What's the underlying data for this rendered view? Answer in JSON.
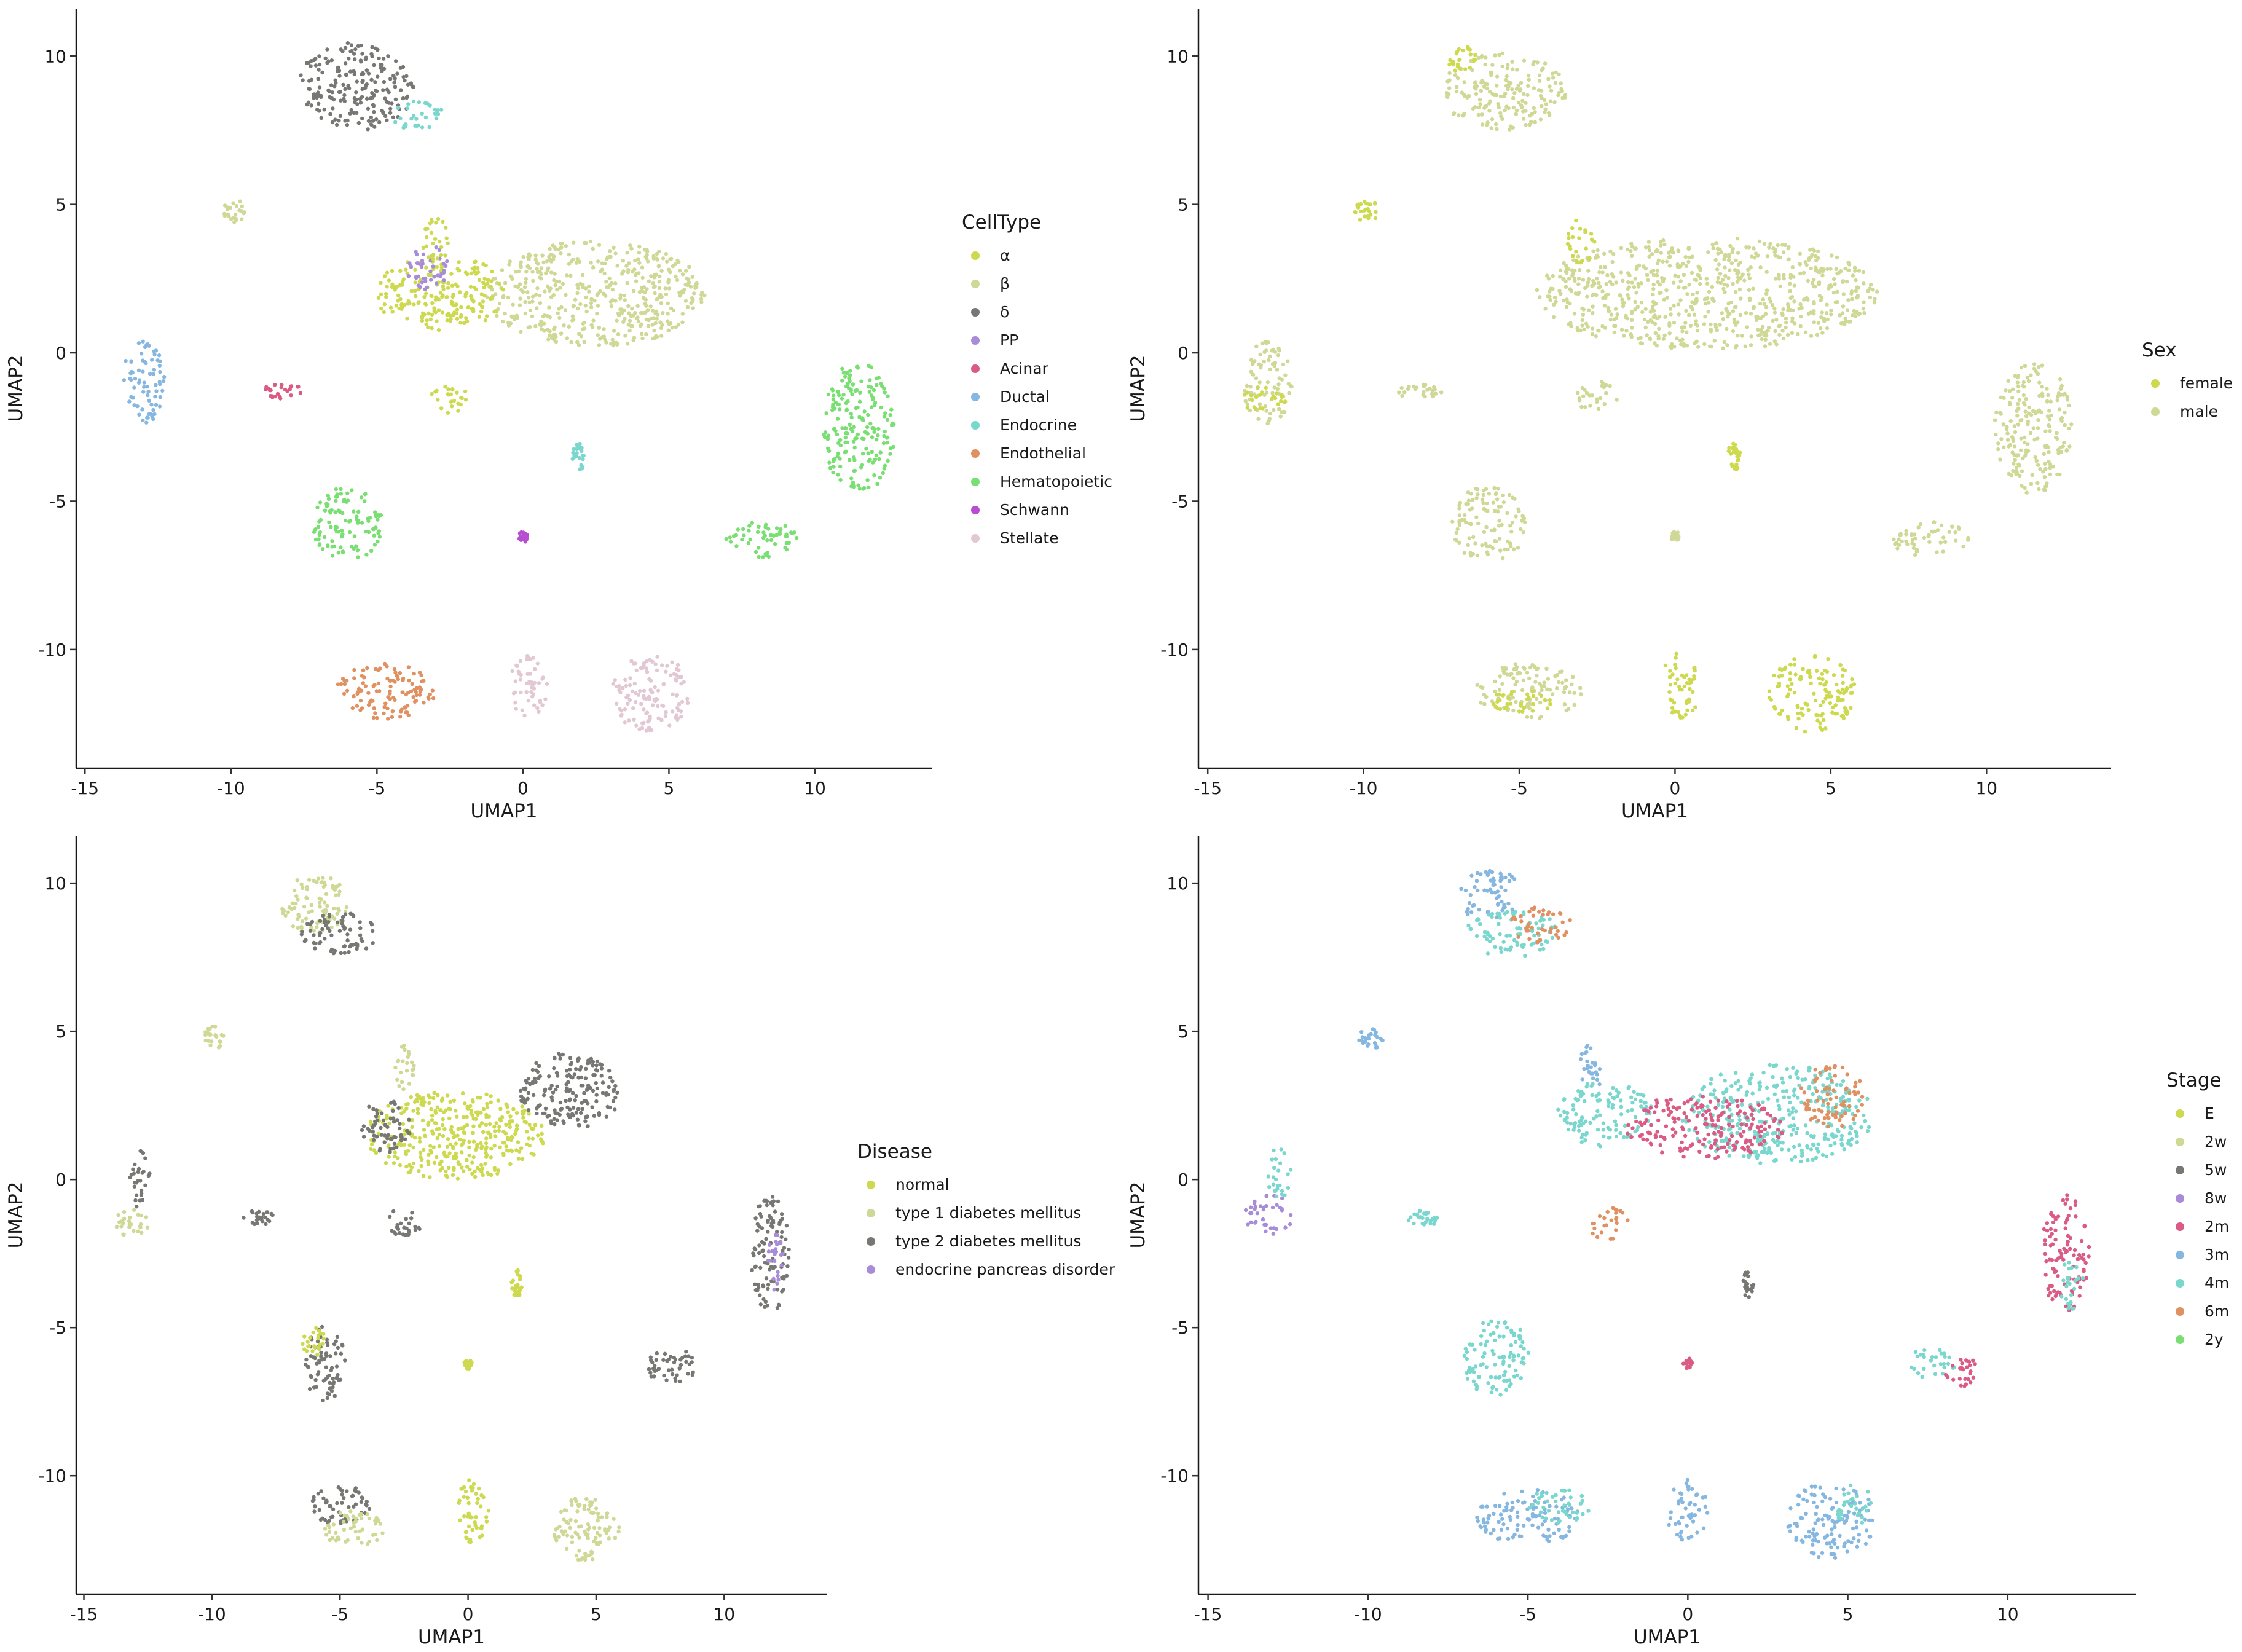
{
  "chart_data": [
    {
      "type": "scatter",
      "xlabel": "UMAP1",
      "ylabel": "UMAP2",
      "xlim": [
        -15.3,
        14
      ],
      "ylim": [
        -14.0,
        11.6
      ],
      "xticks": [
        -15,
        -10,
        -5,
        0,
        5,
        10
      ],
      "yticks": [
        10,
        5,
        0,
        -5,
        -10
      ],
      "legend": {
        "title": "CellType",
        "placement": "right",
        "entries": [
          {
            "label": "α",
            "color": "#CDD94E"
          },
          {
            "label": "β",
            "color": "#CFD895"
          },
          {
            "label": "δ",
            "color": "#777773"
          },
          {
            "label": "PP",
            "color": "#A98CD8"
          },
          {
            "label": "Acinar",
            "color": "#DA5C84"
          },
          {
            "label": "Ductal",
            "color": "#86B7E0"
          },
          {
            "label": "Endocrine",
            "color": "#7AD7CE"
          },
          {
            "label": "Endothelial",
            "color": "#DF9162"
          },
          {
            "label": "Hematopoietic",
            "color": "#7ADF72"
          },
          {
            "label": "Schwann",
            "color": "#B74DD0"
          },
          {
            "label": "Stellate",
            "color": "#E2C8D3"
          }
        ]
      },
      "clusters": [
        {
          "x": -5.7,
          "y": 9.0,
          "w": 4.0,
          "h": 3.0,
          "color": "#777773"
        },
        {
          "x": -3.6,
          "y": 8.0,
          "w": 1.8,
          "h": 1.0,
          "color": "#7AD7CE"
        },
        {
          "x": -9.9,
          "y": 4.8,
          "w": 0.8,
          "h": 0.8,
          "color": "#CFD895"
        },
        {
          "x": 2.5,
          "y": 2.0,
          "w": 7.5,
          "h": 3.6,
          "color": "#CFD895"
        },
        {
          "x": -2.8,
          "y": 2.0,
          "w": 4.5,
          "h": 2.6,
          "color": "#CDD94E"
        },
        {
          "x": -3.2,
          "y": 2.8,
          "w": 1.5,
          "h": 1.6,
          "color": "#A98CD8"
        },
        {
          "x": -3.0,
          "y": 3.8,
          "w": 0.9,
          "h": 1.6,
          "color": "#CDD94E"
        },
        {
          "x": -13.0,
          "y": -1.0,
          "w": 1.5,
          "h": 2.8,
          "color": "#86B7E0"
        },
        {
          "x": -8.2,
          "y": -1.3,
          "w": 1.5,
          "h": 0.5,
          "color": "#DA5C84"
        },
        {
          "x": -2.5,
          "y": -1.5,
          "w": 1.3,
          "h": 1.1,
          "color": "#CDD94E"
        },
        {
          "x": 1.9,
          "y": -3.5,
          "w": 0.4,
          "h": 1.0,
          "color": "#7AD7CE"
        },
        {
          "x": 11.5,
          "y": -2.5,
          "w": 2.5,
          "h": 4.5,
          "color": "#7ADF72"
        },
        {
          "x": -6.0,
          "y": -5.8,
          "w": 2.4,
          "h": 2.6,
          "color": "#7ADF72"
        },
        {
          "x": 0.0,
          "y": -6.2,
          "w": 0.3,
          "h": 0.4,
          "color": "#B74DD0"
        },
        {
          "x": 8.2,
          "y": -6.3,
          "w": 2.5,
          "h": 1.2,
          "color": "#7ADF72"
        },
        {
          "x": -4.7,
          "y": -11.4,
          "w": 3.4,
          "h": 1.9,
          "color": "#DF9162"
        },
        {
          "x": 0.2,
          "y": -11.2,
          "w": 1.3,
          "h": 2.2,
          "color": "#E2C8D3"
        },
        {
          "x": 4.4,
          "y": -11.5,
          "w": 2.8,
          "h": 2.6,
          "color": "#E2C8D3"
        }
      ]
    },
    {
      "type": "scatter",
      "xlabel": "UMAP1",
      "ylabel": "UMAP2",
      "xlim": [
        -15.3,
        14
      ],
      "ylim": [
        -14.0,
        11.6
      ],
      "xticks": [
        -15,
        -10,
        -5,
        0,
        5,
        10
      ],
      "yticks": [
        10,
        5,
        0,
        -5,
        -10
      ],
      "legend": {
        "title": "Sex",
        "placement": "right",
        "entries": [
          {
            "label": "female",
            "color": "#CDD94E"
          },
          {
            "label": "male",
            "color": "#CFD895"
          }
        ]
      },
      "clusters": [
        {
          "x": -5.5,
          "y": 8.8,
          "w": 4.0,
          "h": 2.6,
          "color": "#CFD895"
        },
        {
          "x": -6.8,
          "y": 9.9,
          "w": 1.0,
          "h": 0.9,
          "color": "#CDD94E"
        },
        {
          "x": -9.9,
          "y": 4.8,
          "w": 0.8,
          "h": 0.8,
          "color": "#CDD94E"
        },
        {
          "x": 1.0,
          "y": 2.0,
          "w": 11.0,
          "h": 3.8,
          "color": "#CFD895"
        },
        {
          "x": -3.0,
          "y": 3.8,
          "w": 0.9,
          "h": 1.6,
          "color": "#CDD94E"
        },
        {
          "x": -13.1,
          "y": -1.0,
          "w": 1.6,
          "h": 2.8,
          "color": "#CFD895"
        },
        {
          "x": -13.2,
          "y": -1.6,
          "w": 1.4,
          "h": 0.9,
          "color": "#CDD94E"
        },
        {
          "x": -8.2,
          "y": -1.3,
          "w": 1.5,
          "h": 0.5,
          "color": "#CFD895"
        },
        {
          "x": -2.5,
          "y": -1.5,
          "w": 1.3,
          "h": 1.1,
          "color": "#CFD895"
        },
        {
          "x": 1.9,
          "y": -3.5,
          "w": 0.4,
          "h": 1.0,
          "color": "#CDD94E"
        },
        {
          "x": 11.5,
          "y": -2.5,
          "w": 2.5,
          "h": 4.5,
          "color": "#CFD895"
        },
        {
          "x": -6.0,
          "y": -5.8,
          "w": 2.4,
          "h": 2.6,
          "color": "#CFD895"
        },
        {
          "x": 0.0,
          "y": -6.2,
          "w": 0.3,
          "h": 0.4,
          "color": "#CFD895"
        },
        {
          "x": 8.2,
          "y": -6.3,
          "w": 2.5,
          "h": 1.2,
          "color": "#CFD895"
        },
        {
          "x": -4.7,
          "y": -11.4,
          "w": 3.4,
          "h": 1.9,
          "color": "#CFD895"
        },
        {
          "x": -5.0,
          "y": -11.8,
          "w": 2.0,
          "h": 1.0,
          "color": "#CDD94E"
        },
        {
          "x": 0.2,
          "y": -11.2,
          "w": 1.3,
          "h": 2.2,
          "color": "#CDD94E"
        },
        {
          "x": 4.4,
          "y": -11.5,
          "w": 2.8,
          "h": 2.6,
          "color": "#CDD94E"
        }
      ]
    },
    {
      "type": "scatter",
      "xlabel": "UMAP1",
      "ylabel": "UMAP2",
      "xlim": [
        -15.3,
        14
      ],
      "ylim": [
        -14.0,
        11.6
      ],
      "xticks": [
        -15,
        -10,
        -5,
        0,
        5,
        10
      ],
      "yticks": [
        10,
        5,
        0,
        -5,
        -10
      ],
      "legend": {
        "title": "Disease",
        "placement": "right",
        "entries": [
          {
            "label": "normal",
            "color": "#CDD94E"
          },
          {
            "label": "type 1 diabetes mellitus",
            "color": "#CFD895"
          },
          {
            "label": "type 2 diabetes mellitus",
            "color": "#777773"
          },
          {
            "label": "endocrine pancreas disorder",
            "color": "#A98CD8"
          }
        ]
      },
      "clusters": [
        {
          "x": -6.0,
          "y": 9.3,
          "w": 2.6,
          "h": 2.0,
          "color": "#CFD895"
        },
        {
          "x": -5.0,
          "y": 8.3,
          "w": 3.0,
          "h": 1.4,
          "color": "#777773"
        },
        {
          "x": -9.9,
          "y": 4.8,
          "w": 0.8,
          "h": 0.8,
          "color": "#CFD895"
        },
        {
          "x": 4.0,
          "y": 3.0,
          "w": 4.0,
          "h": 2.6,
          "color": "#777773"
        },
        {
          "x": -0.5,
          "y": 1.5,
          "w": 7.0,
          "h": 3.0,
          "color": "#CDD94E"
        },
        {
          "x": -3.2,
          "y": 1.8,
          "w": 2.0,
          "h": 1.8,
          "color": "#777773"
        },
        {
          "x": -2.5,
          "y": 3.8,
          "w": 0.8,
          "h": 1.6,
          "color": "#CFD895"
        },
        {
          "x": -13.1,
          "y": -1.5,
          "w": 1.5,
          "h": 1.0,
          "color": "#CFD895"
        },
        {
          "x": -12.8,
          "y": 0.0,
          "w": 0.8,
          "h": 2.0,
          "color": "#777773"
        },
        {
          "x": -8.2,
          "y": -1.3,
          "w": 1.3,
          "h": 0.5,
          "color": "#777773"
        },
        {
          "x": -2.5,
          "y": -1.5,
          "w": 1.3,
          "h": 1.1,
          "color": "#777773"
        },
        {
          "x": 1.9,
          "y": -3.5,
          "w": 0.4,
          "h": 1.0,
          "color": "#CDD94E"
        },
        {
          "x": 11.8,
          "y": -2.5,
          "w": 1.5,
          "h": 4.0,
          "color": "#777773"
        },
        {
          "x": 12.0,
          "y": -2.8,
          "w": 0.6,
          "h": 2.0,
          "color": "#A98CD8"
        },
        {
          "x": -5.6,
          "y": -6.2,
          "w": 1.6,
          "h": 2.6,
          "color": "#777773"
        },
        {
          "x": -6.0,
          "y": -5.5,
          "w": 1.0,
          "h": 1.0,
          "color": "#CDD94E"
        },
        {
          "x": 0.0,
          "y": -6.2,
          "w": 0.3,
          "h": 0.4,
          "color": "#CDD94E"
        },
        {
          "x": 8.0,
          "y": -6.3,
          "w": 2.2,
          "h": 1.2,
          "color": "#777773"
        },
        {
          "x": -5.0,
          "y": -11.0,
          "w": 2.4,
          "h": 1.4,
          "color": "#777773"
        },
        {
          "x": -4.5,
          "y": -11.8,
          "w": 2.4,
          "h": 1.2,
          "color": "#CFD895"
        },
        {
          "x": 0.2,
          "y": -11.2,
          "w": 1.3,
          "h": 2.2,
          "color": "#CDD94E"
        },
        {
          "x": 4.6,
          "y": -11.8,
          "w": 2.6,
          "h": 2.2,
          "color": "#CFD895"
        }
      ]
    },
    {
      "type": "scatter",
      "xlabel": "UMAP1",
      "ylabel": "UMAP2",
      "xlim": [
        -15.3,
        14
      ],
      "ylim": [
        -14.0,
        11.6
      ],
      "xticks": [
        -15,
        -10,
        -5,
        0,
        5,
        10
      ],
      "yticks": [
        10,
        5,
        0,
        -5,
        -10
      ],
      "legend": {
        "title": "Stage",
        "placement": "right",
        "entries": [
          {
            "label": "E",
            "color": "#CDD94E"
          },
          {
            "label": "2w",
            "color": "#CFD895"
          },
          {
            "label": "5w",
            "color": "#777773"
          },
          {
            "label": "8w",
            "color": "#A98CD8"
          },
          {
            "label": "2m",
            "color": "#DA5C84"
          },
          {
            "label": "3m",
            "color": "#86B7E0"
          },
          {
            "label": "4m",
            "color": "#7AD7CE"
          },
          {
            "label": "6m",
            "color": "#DF9162"
          },
          {
            "label": "2y",
            "color": "#7ADF72"
          }
        ]
      },
      "clusters": [
        {
          "x": -6.2,
          "y": 9.6,
          "w": 2.0,
          "h": 1.8,
          "color": "#86B7E0"
        },
        {
          "x": -5.5,
          "y": 8.3,
          "w": 3.0,
          "h": 1.6,
          "color": "#7AD7CE"
        },
        {
          "x": -4.6,
          "y": 8.6,
          "w": 2.0,
          "h": 1.2,
          "color": "#DF9162"
        },
        {
          "x": -9.9,
          "y": 4.8,
          "w": 0.8,
          "h": 0.8,
          "color": "#86B7E0"
        },
        {
          "x": 2.8,
          "y": 2.2,
          "w": 6.0,
          "h": 3.4,
          "color": "#7AD7CE"
        },
        {
          "x": -2.6,
          "y": 2.2,
          "w": 3.0,
          "h": 2.2,
          "color": "#7AD7CE"
        },
        {
          "x": 0.5,
          "y": 1.8,
          "w": 5.0,
          "h": 2.2,
          "color": "#DA5C84"
        },
        {
          "x": 4.5,
          "y": 2.8,
          "w": 2.0,
          "h": 2.2,
          "color": "#DF9162"
        },
        {
          "x": -3.0,
          "y": 3.8,
          "w": 0.8,
          "h": 1.6,
          "color": "#86B7E0"
        },
        {
          "x": -13.1,
          "y": -1.2,
          "w": 1.5,
          "h": 1.4,
          "color": "#A98CD8"
        },
        {
          "x": -12.8,
          "y": 0.2,
          "w": 0.8,
          "h": 1.8,
          "color": "#7AD7CE"
        },
        {
          "x": -8.2,
          "y": -1.3,
          "w": 1.3,
          "h": 0.5,
          "color": "#7AD7CE"
        },
        {
          "x": -2.5,
          "y": -1.5,
          "w": 1.3,
          "h": 1.1,
          "color": "#DF9162"
        },
        {
          "x": 1.9,
          "y": -3.5,
          "w": 0.4,
          "h": 1.0,
          "color": "#777773"
        },
        {
          "x": 11.8,
          "y": -2.5,
          "w": 1.5,
          "h": 4.0,
          "color": "#DA5C84"
        },
        {
          "x": 12.0,
          "y": -3.5,
          "w": 0.8,
          "h": 1.8,
          "color": "#7AD7CE"
        },
        {
          "x": -6.0,
          "y": -6.0,
          "w": 2.2,
          "h": 2.6,
          "color": "#7AD7CE"
        },
        {
          "x": 0.0,
          "y": -6.2,
          "w": 0.3,
          "h": 0.4,
          "color": "#DA5C84"
        },
        {
          "x": 7.6,
          "y": -6.2,
          "w": 1.6,
          "h": 1.0,
          "color": "#7AD7CE"
        },
        {
          "x": 8.6,
          "y": -6.5,
          "w": 1.2,
          "h": 1.0,
          "color": "#DA5C84"
        },
        {
          "x": -5.0,
          "y": -11.4,
          "w": 3.2,
          "h": 1.9,
          "color": "#86B7E0"
        },
        {
          "x": -4.0,
          "y": -11.0,
          "w": 2.0,
          "h": 1.2,
          "color": "#7AD7CE"
        },
        {
          "x": 0.0,
          "y": -11.2,
          "w": 1.3,
          "h": 2.2,
          "color": "#86B7E0"
        },
        {
          "x": 4.5,
          "y": -11.5,
          "w": 2.8,
          "h": 2.6,
          "color": "#86B7E0"
        },
        {
          "x": 5.2,
          "y": -11.0,
          "w": 1.2,
          "h": 1.4,
          "color": "#7AD7CE"
        }
      ]
    }
  ]
}
